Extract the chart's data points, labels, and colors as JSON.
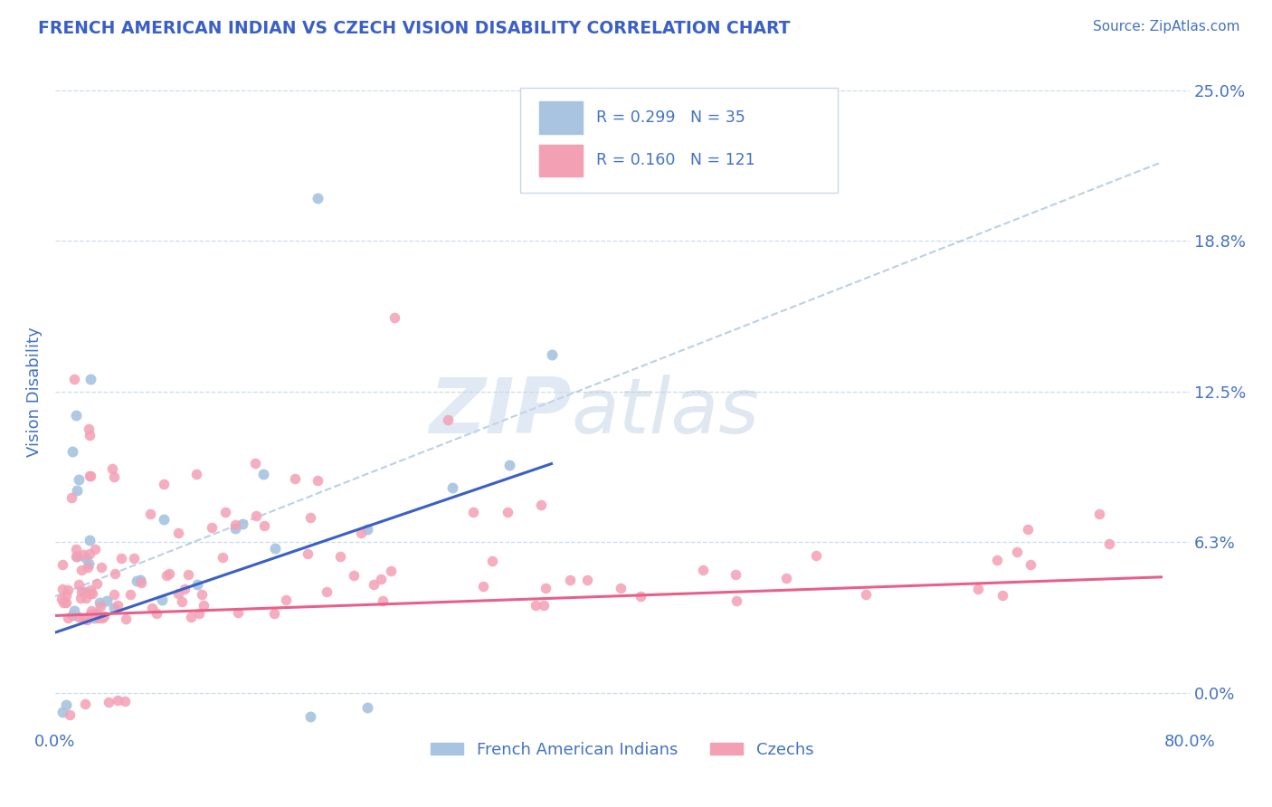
{
  "title": "FRENCH AMERICAN INDIAN VS CZECH VISION DISABILITY CORRELATION CHART",
  "source": "Source: ZipAtlas.com",
  "ylabel": "Vision Disability",
  "xlim": [
    0.0,
    0.8
  ],
  "ylim": [
    -0.015,
    0.265
  ],
  "ytick_vals": [
    0.0,
    0.0625,
    0.125,
    0.1875,
    0.25
  ],
  "ytick_labels": [
    "0.0%",
    "6.3%",
    "12.5%",
    "18.8%",
    "25.0%"
  ],
  "xtick_vals": [
    0.0,
    0.8
  ],
  "xtick_labels": [
    "0.0%",
    "80.0%"
  ],
  "legend_r1": "R = 0.299",
  "legend_n1": "N = 35",
  "legend_r2": "R = 0.160",
  "legend_n2": "N = 121",
  "color_blue": "#a8c4e0",
  "color_pink": "#f4a0b4",
  "line_blue": "#3a5fc8",
  "line_pink": "#e8608a",
  "line_dashed": "#b0c8e0",
  "title_color": "#3a5fc8",
  "tick_color": "#4472c4",
  "source_color": "#4472c4",
  "watermark_color": "#dce8f4",
  "background_color": "#ffffff",
  "grid_color": "#c8d8e8"
}
